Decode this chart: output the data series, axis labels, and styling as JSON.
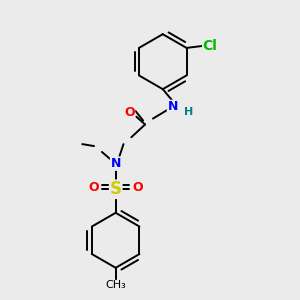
{
  "bg_color": "#ebebeb",
  "bond_color": "#000000",
  "atom_colors": {
    "O": "#ff0000",
    "N": "#0000ff",
    "S": "#cccc00",
    "Cl": "#00bb00",
    "H": "#008080",
    "C": "#000000"
  },
  "figure_size": [
    3.0,
    3.0
  ],
  "dpi": 100
}
